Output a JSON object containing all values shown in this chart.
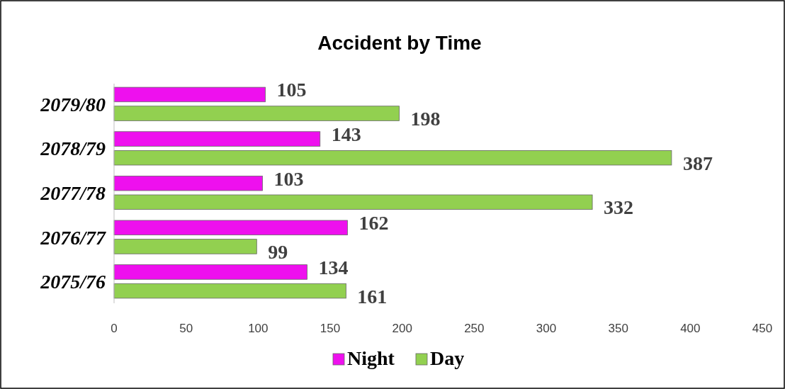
{
  "chart_data": {
    "type": "bar",
    "orientation": "horizontal",
    "title": "Accident by Time",
    "categories": [
      "2079/80",
      "2078/79",
      "2077/78",
      "2076/77",
      "2075/76"
    ],
    "series": [
      {
        "name": "Night",
        "color": "#ee10ee",
        "values": [
          105,
          143,
          103,
          162,
          134
        ]
      },
      {
        "name": "Day",
        "color": "#92d050",
        "values": [
          198,
          387,
          332,
          99,
          161
        ]
      }
    ],
    "xlim": [
      0,
      450
    ],
    "xticks": [
      0,
      50,
      100,
      150,
      200,
      250,
      300,
      350,
      400,
      450
    ],
    "data_labels": true,
    "legend": "bottom",
    "grid": false
  }
}
